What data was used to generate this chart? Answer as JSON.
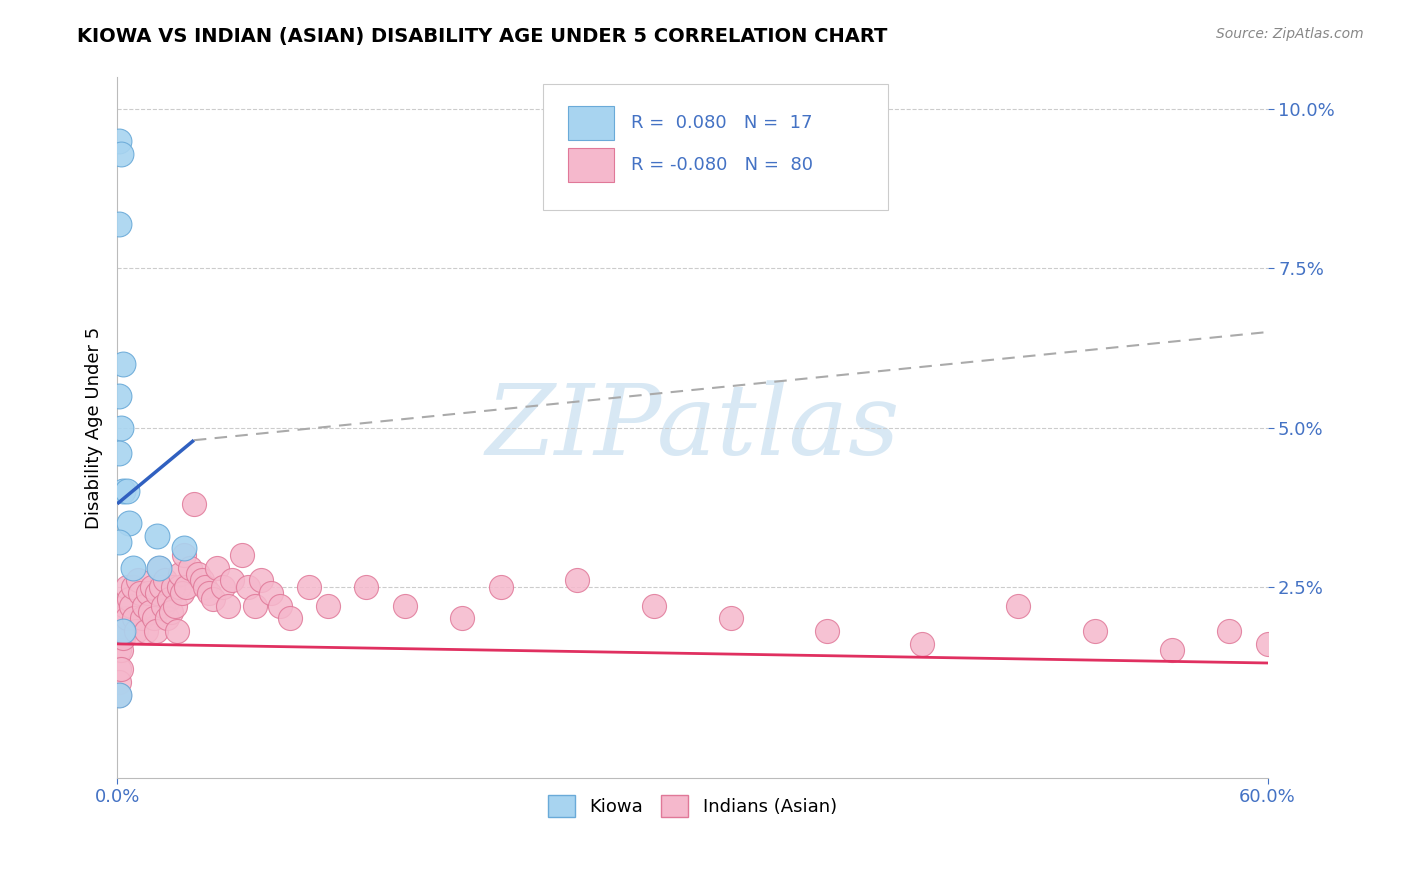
{
  "title": "KIOWA VS INDIAN (ASIAN) DISABILITY AGE UNDER 5 CORRELATION CHART",
  "source": "Source: ZipAtlas.com",
  "ylabel": "Disability Age Under 5",
  "xlim": [
    0.0,
    0.6
  ],
  "ylim": [
    -0.005,
    0.105
  ],
  "yticks": [
    0.025,
    0.05,
    0.075,
    0.1
  ],
  "ytick_labels": [
    "2.5%",
    "5.0%",
    "7.5%",
    "10.0%"
  ],
  "xtick_left_label": "0.0%",
  "xtick_right_label": "60.0%",
  "kiowa_legend": "Kiowa",
  "indian_legend": "Indians (Asian)",
  "kiowa_color": "#a8d4f0",
  "kiowa_edge": "#6aaad8",
  "indian_color": "#f5b8cc",
  "indian_edge": "#e07898",
  "trendline_kiowa_color": "#3060c0",
  "trendline_indian_color": "#e03060",
  "dashed_color": "#aaaaaa",
  "background_color": "#ffffff",
  "watermark": "ZIPatlas",
  "watermark_color": "#c8dff0",
  "legend_r1": "R =  0.080   N =  17",
  "legend_r2": "R = -0.080   N =  80",
  "legend_text_color": "#4472c4",
  "kiowa_scatter_x": [
    0.001,
    0.002,
    0.001,
    0.003,
    0.001,
    0.002,
    0.001,
    0.003,
    0.005,
    0.006,
    0.001,
    0.008,
    0.021,
    0.022,
    0.035,
    0.001,
    0.003
  ],
  "kiowa_scatter_y": [
    0.095,
    0.093,
    0.082,
    0.06,
    0.055,
    0.05,
    0.046,
    0.04,
    0.04,
    0.035,
    0.032,
    0.028,
    0.033,
    0.028,
    0.031,
    0.008,
    0.018
  ],
  "indian_scatter_x": [
    0.001,
    0.001,
    0.001,
    0.001,
    0.001,
    0.001,
    0.002,
    0.002,
    0.002,
    0.003,
    0.003,
    0.004,
    0.004,
    0.005,
    0.005,
    0.006,
    0.007,
    0.008,
    0.009,
    0.01,
    0.011,
    0.012,
    0.013,
    0.014,
    0.015,
    0.016,
    0.017,
    0.018,
    0.019,
    0.02,
    0.021,
    0.022,
    0.023,
    0.024,
    0.025,
    0.026,
    0.027,
    0.028,
    0.029,
    0.03,
    0.031,
    0.032,
    0.033,
    0.034,
    0.035,
    0.036,
    0.038,
    0.04,
    0.042,
    0.044,
    0.046,
    0.048,
    0.05,
    0.052,
    0.055,
    0.058,
    0.06,
    0.065,
    0.068,
    0.072,
    0.075,
    0.08,
    0.085,
    0.09,
    0.1,
    0.11,
    0.13,
    0.15,
    0.18,
    0.2,
    0.24,
    0.28,
    0.32,
    0.37,
    0.42,
    0.47,
    0.51,
    0.55,
    0.58,
    0.6
  ],
  "indian_scatter_y": [
    0.02,
    0.018,
    0.015,
    0.012,
    0.01,
    0.008,
    0.018,
    0.015,
    0.012,
    0.02,
    0.017,
    0.022,
    0.018,
    0.025,
    0.02,
    0.023,
    0.022,
    0.025,
    0.02,
    0.018,
    0.026,
    0.024,
    0.02,
    0.022,
    0.018,
    0.024,
    0.021,
    0.025,
    0.02,
    0.018,
    0.024,
    0.028,
    0.025,
    0.022,
    0.026,
    0.02,
    0.023,
    0.021,
    0.025,
    0.022,
    0.018,
    0.025,
    0.027,
    0.024,
    0.03,
    0.025,
    0.028,
    0.038,
    0.027,
    0.026,
    0.025,
    0.024,
    0.023,
    0.028,
    0.025,
    0.022,
    0.026,
    0.03,
    0.025,
    0.022,
    0.026,
    0.024,
    0.022,
    0.02,
    0.025,
    0.022,
    0.025,
    0.022,
    0.02,
    0.025,
    0.026,
    0.022,
    0.02,
    0.018,
    0.016,
    0.022,
    0.018,
    0.015,
    0.018,
    0.016
  ],
  "kiowa_trend_x0": 0.0,
  "kiowa_trend_y0": 0.038,
  "kiowa_trend_x1": 0.04,
  "kiowa_trend_y1": 0.048,
  "dashed_trend_x0": 0.04,
  "dashed_trend_y0": 0.048,
  "dashed_trend_x1": 0.6,
  "dashed_trend_y1": 0.065,
  "indian_trend_x0": 0.0,
  "indian_trend_y0": 0.016,
  "indian_trend_x1": 0.6,
  "indian_trend_y1": 0.013
}
